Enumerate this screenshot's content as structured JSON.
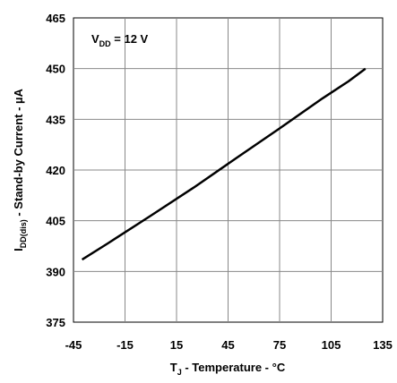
{
  "chart_data": {
    "type": "line",
    "xlim": [
      -45,
      135
    ],
    "ylim": [
      375,
      465
    ],
    "x_ticks": [
      "-45",
      "-15",
      "15",
      "45",
      "75",
      "105",
      "135"
    ],
    "y_ticks": [
      "465",
      "450",
      "435",
      "420",
      "405",
      "390",
      "375"
    ],
    "grid": true,
    "xlabel": {
      "main": "T",
      "sub": "J",
      "rest": " - Temperature - °C"
    },
    "ylabel": {
      "main": "I",
      "sub": "DD(dis)",
      "rest": " - Stand-by Current - µA"
    },
    "annotation": {
      "main": "V",
      "sub": "DD",
      "rest": " = 12 V"
    },
    "series": [
      {
        "color": "#000000",
        "x": [
          -40,
          -25,
          0,
          25,
          50,
          75,
          100,
          115,
          125
        ],
        "y": [
          393.5,
          398.3,
          406.5,
          414.8,
          423.6,
          432.3,
          441.2,
          446.2,
          450
        ]
      }
    ]
  }
}
